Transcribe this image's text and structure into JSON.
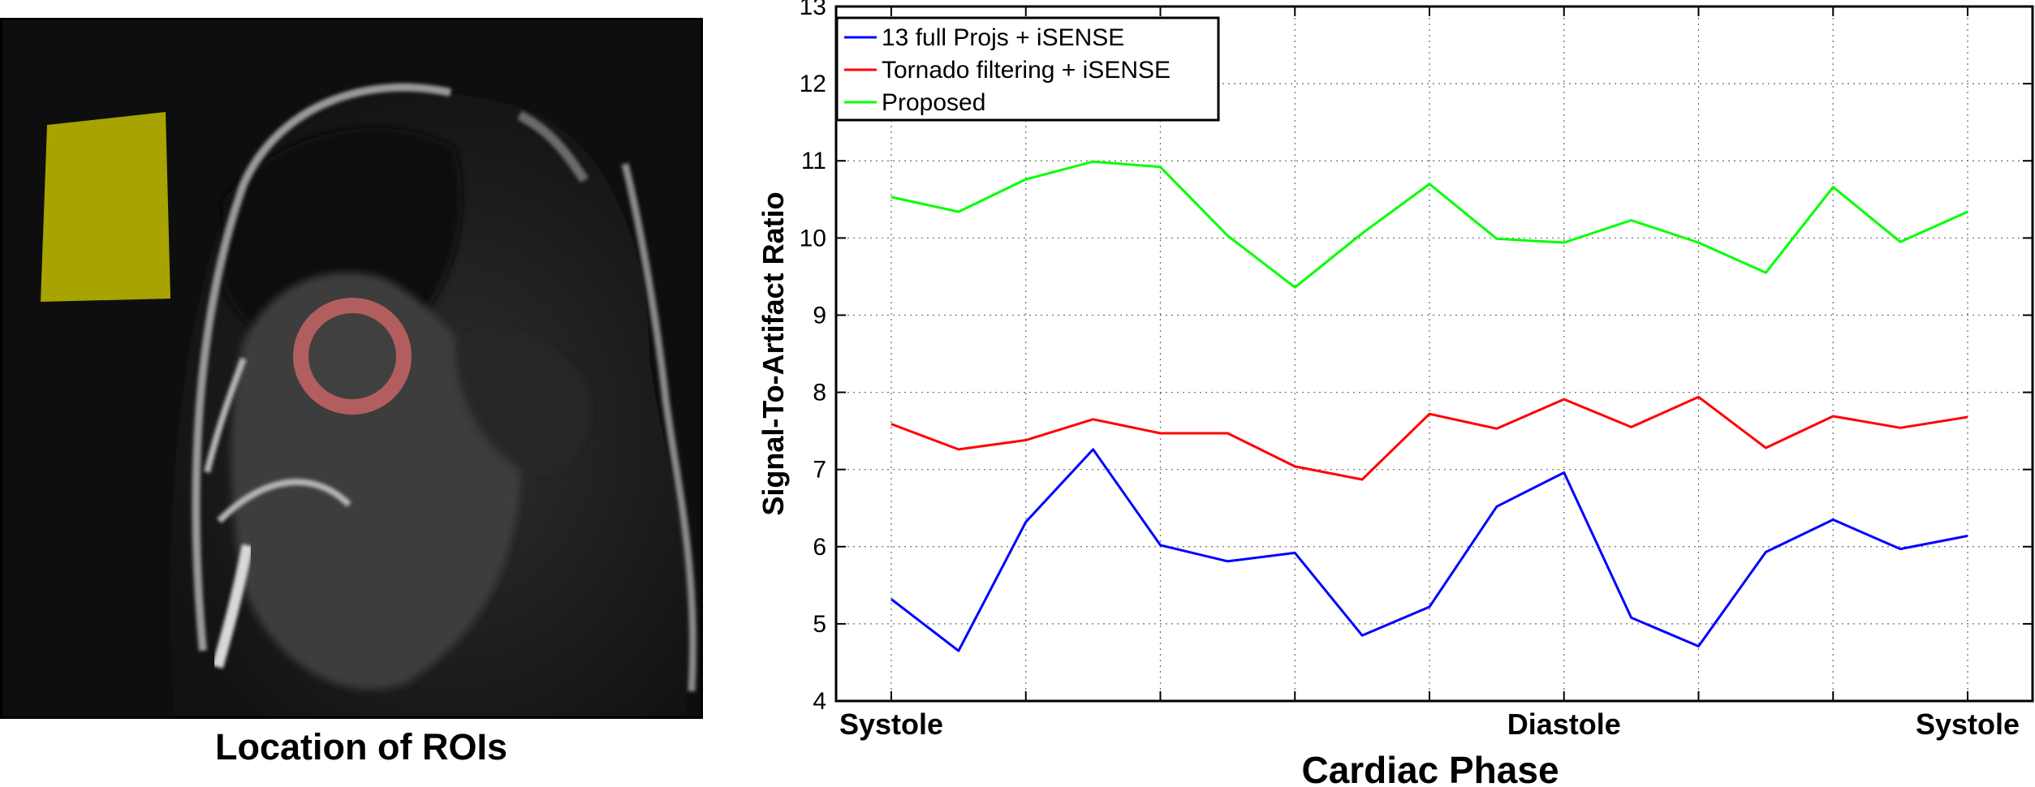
{
  "figure": {
    "left_panel_caption": "Location of ROIs",
    "roi_colors": {
      "background_roi": "#b8b400",
      "myocardium_roi": "#c86464"
    }
  },
  "chart_data": {
    "type": "line",
    "title": "",
    "xlabel": "Cardiac Phase",
    "ylabel": "Signal-To-Artifact Ratio",
    "x": [
      1,
      2,
      3,
      4,
      5,
      6,
      7,
      8,
      9,
      10,
      11,
      12,
      13,
      14,
      15,
      16,
      17
    ],
    "xlim": [
      1,
      17
    ],
    "ylim": [
      4,
      13
    ],
    "yticks": [
      "4",
      "5",
      "6",
      "7",
      "8",
      "9",
      "10",
      "11",
      "12",
      "13"
    ],
    "phase_labels": [
      {
        "x": 1,
        "label": "Systole"
      },
      {
        "x": 11,
        "label": "Diastole"
      },
      {
        "x": 17,
        "label": "Systole"
      }
    ],
    "grid": true,
    "legend_position": "top-left",
    "series": [
      {
        "name": "13 full Projs + iSENSE",
        "color": "#0000ff",
        "values": [
          5.32,
          4.65,
          6.32,
          7.26,
          6.02,
          5.81,
          5.92,
          4.85,
          5.22,
          6.52,
          6.96,
          5.08,
          4.71,
          5.93,
          6.35,
          5.97,
          6.14
        ]
      },
      {
        "name": "Tornado filtering + iSENSE",
        "color": "#ff0000",
        "values": [
          7.59,
          7.26,
          7.38,
          7.65,
          7.47,
          7.47,
          7.04,
          6.87,
          7.72,
          7.53,
          7.91,
          7.55,
          7.94,
          7.28,
          7.69,
          7.54,
          7.68
        ]
      },
      {
        "name": "Proposed",
        "color": "#00ff00",
        "values": [
          10.53,
          10.34,
          10.76,
          10.99,
          10.92,
          10.03,
          9.36,
          10.06,
          10.7,
          9.99,
          9.94,
          10.23,
          9.94,
          9.55,
          10.66,
          9.95,
          10.34
        ]
      }
    ]
  }
}
